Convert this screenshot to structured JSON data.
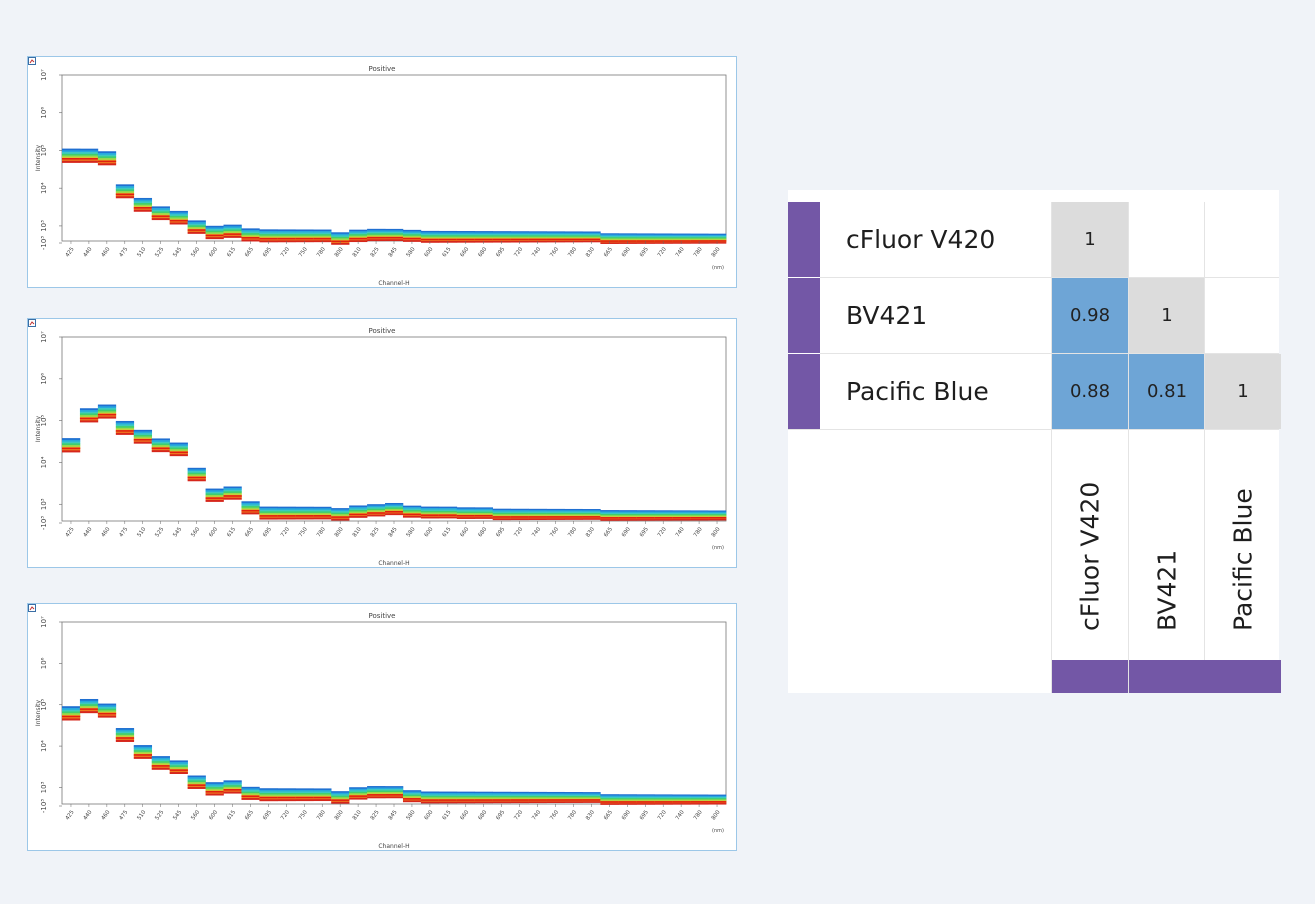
{
  "chart_data": [
    {
      "type": "line",
      "title": "Positive",
      "xlabel": "Channel-H",
      "xunit": "(nm)",
      "ylabel": "Intensity",
      "y_scale": "log",
      "y_ticks": [
        "-10³",
        "10³",
        "10⁴",
        "10⁵",
        "10⁶",
        "10⁷"
      ],
      "x": [
        "425",
        "440",
        "460",
        "475",
        "510",
        "525",
        "545",
        "560",
        "600",
        "615",
        "665",
        "695",
        "720",
        "750",
        "780",
        "800",
        "810",
        "825",
        "845",
        "580",
        "600",
        "615",
        "660",
        "680",
        "695",
        "720",
        "740",
        "760",
        "780",
        "830",
        "665",
        "690",
        "695",
        "720",
        "740",
        "780",
        "800"
      ],
      "series": [
        {
          "values": [
            70000,
            70000,
            60000,
            8000,
            3500,
            2100,
            1600,
            900,
            650,
            700,
            560,
            530,
            530,
            530,
            530,
            450,
            530,
            560,
            560,
            530,
            500,
            500,
            500,
            500,
            500,
            500,
            500,
            500,
            500,
            500,
            450,
            450,
            450,
            450,
            450,
            450,
            450
          ]
        }
      ]
    },
    {
      "type": "line",
      "title": "Positive",
      "xlabel": "Channel-H",
      "xunit": "(nm)",
      "ylabel": "Intensity",
      "y_scale": "log",
      "y_ticks": [
        "-10³",
        "10³",
        "10⁴",
        "10⁵",
        "10⁶",
        "10⁷"
      ],
      "x": [
        "425",
        "440",
        "460",
        "475",
        "510",
        "525",
        "545",
        "560",
        "600",
        "615",
        "665",
        "695",
        "720",
        "750",
        "780",
        "800",
        "810",
        "825",
        "845",
        "580",
        "600",
        "615",
        "660",
        "680",
        "695",
        "720",
        "740",
        "760",
        "780",
        "830",
        "665",
        "690",
        "695",
        "720",
        "740",
        "780",
        "800"
      ],
      "series": [
        {
          "values": [
            25000,
            130000,
            160000,
            65000,
            40000,
            25000,
            20000,
            5000,
            1600,
            1800,
            800,
            600,
            600,
            600,
            600,
            560,
            650,
            700,
            750,
            650,
            620,
            620,
            600,
            600,
            560,
            560,
            560,
            560,
            560,
            560,
            530,
            530,
            530,
            530,
            530,
            530,
            530
          ]
        }
      ]
    },
    {
      "type": "line",
      "title": "Positive",
      "xlabel": "Channel-H",
      "xunit": "(nm)",
      "ylabel": "Intensity",
      "y_scale": "log",
      "y_ticks": [
        "-10³",
        "10³",
        "10⁴",
        "10⁵",
        "10⁶",
        "10⁷"
      ],
      "x": [
        "425",
        "440",
        "460",
        "475",
        "510",
        "525",
        "545",
        "560",
        "600",
        "615",
        "665",
        "695",
        "720",
        "750",
        "780",
        "800",
        "810",
        "825",
        "845",
        "580",
        "600",
        "615",
        "660",
        "680",
        "695",
        "720",
        "740",
        "760",
        "780",
        "830",
        "665",
        "690",
        "695",
        "720",
        "740",
        "780",
        "800"
      ],
      "series": [
        {
          "values": [
            60000,
            90000,
            70000,
            18000,
            7000,
            3800,
            3000,
            1300,
            900,
            1000,
            700,
            650,
            650,
            650,
            650,
            560,
            700,
            750,
            750,
            600,
            560,
            560,
            560,
            560,
            560,
            560,
            560,
            560,
            560,
            560,
            500,
            500,
            500,
            500,
            500,
            500,
            500
          ]
        }
      ]
    }
  ],
  "similarity_matrix": {
    "rows": [
      "cFluor V420",
      "BV421",
      "Pacific Blue"
    ],
    "columns": [
      "cFluor V420",
      "BV421",
      "Pacific Blue"
    ],
    "values": [
      [
        "1",
        "",
        ""
      ],
      [
        "0.98",
        "1",
        ""
      ],
      [
        "0.88",
        "0.81",
        "1"
      ]
    ]
  },
  "colors": {
    "background": "#f0f3f8",
    "accent_purple": "#7357a6",
    "high_similarity": "#6ea5d6",
    "diagonal": "#dcdcdc"
  }
}
